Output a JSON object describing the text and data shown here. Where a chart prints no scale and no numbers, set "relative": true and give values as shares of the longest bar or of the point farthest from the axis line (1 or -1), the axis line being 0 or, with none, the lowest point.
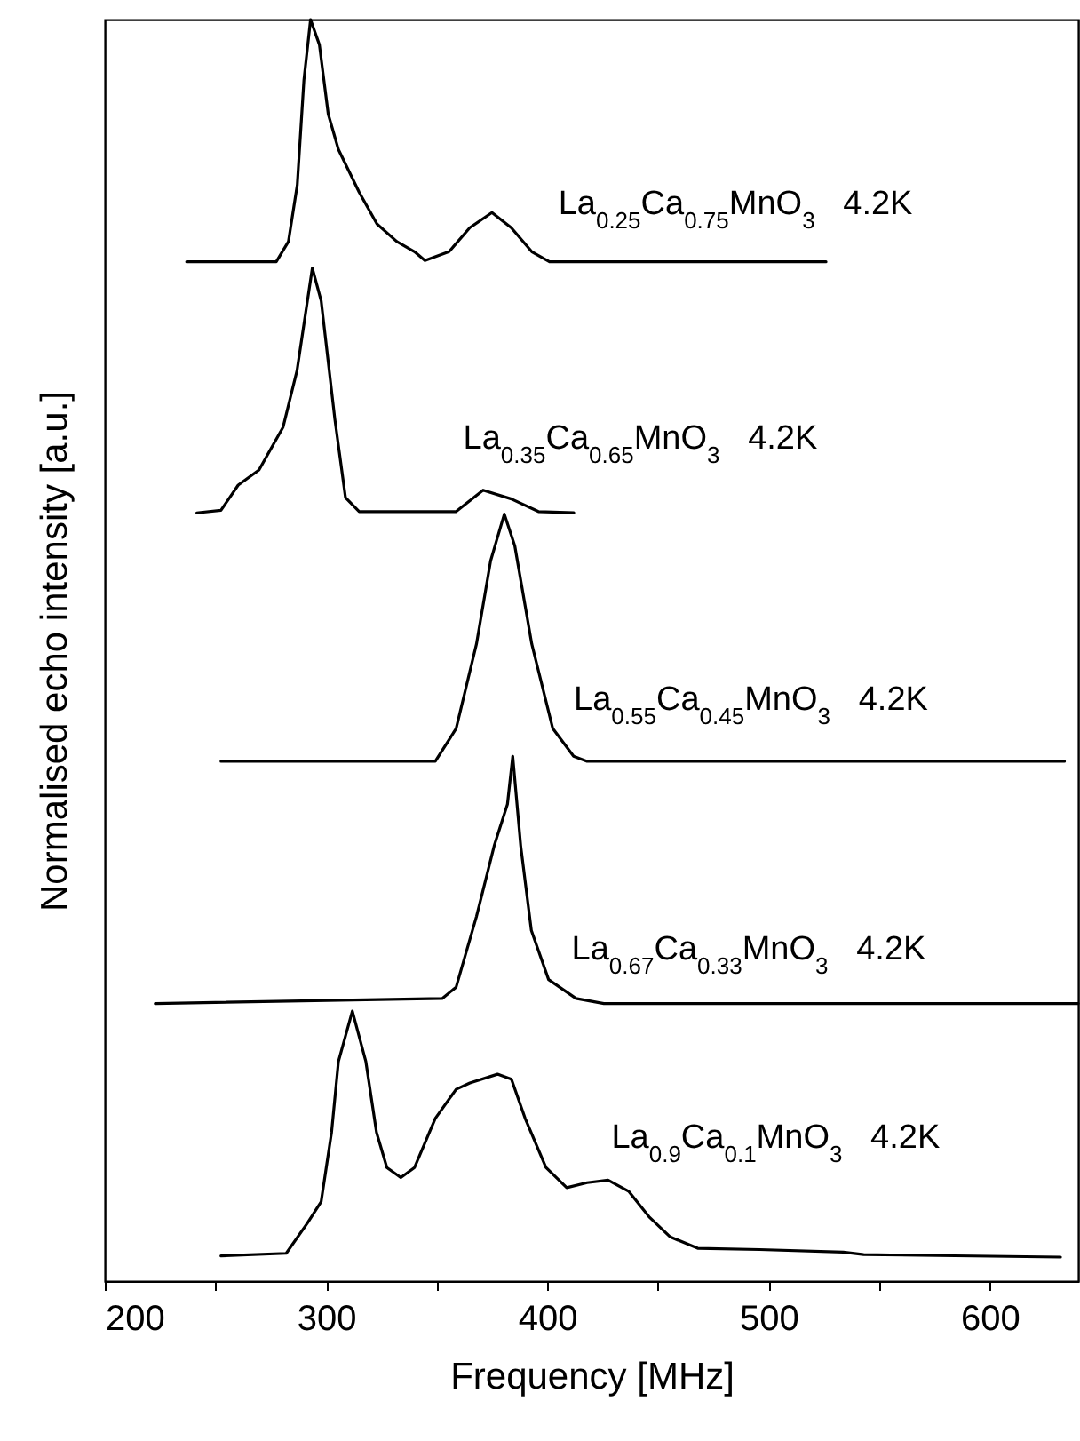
{
  "chart_data": {
    "type": "line",
    "relative": true,
    "xlabel": "Frequency [MHz]",
    "ylabel": "Normalised echo intensity [a.u.]",
    "xlim": [
      200,
      640
    ],
    "xticks": [
      200,
      {
        "value": 250,
        "label": null
      },
      300,
      {
        "value": 350,
        "label": null
      },
      400,
      {
        "value": 450,
        "label": null
      },
      500,
      {
        "value": 550,
        "label": null
      },
      600
    ],
    "series": [
      {
        "name": "La$_{0.25}$Ca$_{0.75}$MnO$_{3}$   4.2K",
        "color": "#000000",
        "x": [
          237,
          277.5,
          283,
          287,
          290,
          293,
          297,
          301,
          305.6,
          315,
          323,
          332,
          340,
          344.7,
          355.6,
          365,
          375,
          383.7,
          393,
          401,
          526
        ],
        "values": [
          0.808,
          0.808,
          0.824,
          0.869,
          0.952,
          1.0,
          0.98,
          0.925,
          0.897,
          0.863,
          0.838,
          0.824,
          0.816,
          0.809,
          0.816,
          0.835,
          0.847,
          0.835,
          0.816,
          0.808,
          0.808
        ]
      },
      {
        "name": "La$_{0.35}$Ca$_{0.65}$MnO$_{3}$   4.2K",
        "color": "#000000",
        "x": [
          241.6,
          252.5,
          260.3,
          269.7,
          280.6,
          286.9,
          293.8,
          297.8,
          304,
          308.8,
          315,
          358.8,
          371,
          383.8,
          396,
          412
        ],
        "values": [
          0.609,
          0.611,
          0.631,
          0.643,
          0.677,
          0.722,
          0.803,
          0.777,
          0.683,
          0.621,
          0.61,
          0.61,
          0.627,
          0.62,
          0.61,
          0.609
        ]
      },
      {
        "name": "La$_{0.55}$Ca$_{0.45}$MnO$_{3}$   4.2K",
        "color": "#000000",
        "x": [
          252.5,
          349.4,
          358.8,
          368,
          374.4,
          380.6,
          385.3,
          393,
          402.5,
          411.9,
          418,
          633.8
        ],
        "values": [
          0.412,
          0.412,
          0.438,
          0.505,
          0.571,
          0.608,
          0.583,
          0.505,
          0.438,
          0.416,
          0.412,
          0.412
        ]
      },
      {
        "name": "La$_{0.67}$Ca$_{0.33}$MnO$_{3}$   4.2K",
        "color": "#000000",
        "x": [
          222.8,
          352.5,
          358.8,
          368,
          376,
          382,
          384.4,
          388,
          392.8,
          400.6,
          413,
          425.6,
          640
        ],
        "values": [
          0.22,
          0.224,
          0.233,
          0.289,
          0.345,
          0.378,
          0.416,
          0.345,
          0.278,
          0.239,
          0.224,
          0.22,
          0.22
        ]
      },
      {
        "name": "La$_{0.9}$Ca$_{0.1}$MnO$_{3}$   4.2K",
        "color": "#000000",
        "x": [
          252.5,
          282,
          291.6,
          297.8,
          302.5,
          305.6,
          311.9,
          318,
          322.8,
          327.5,
          333.8,
          340,
          349.4,
          358.8,
          365,
          377.5,
          383.8,
          390,
          399.4,
          408.8,
          418,
          427.5,
          436.9,
          446,
          455.6,
          468,
          496,
          533.8,
          543,
          632
        ],
        "values": [
          0.02,
          0.022,
          0.046,
          0.063,
          0.118,
          0.174,
          0.214,
          0.174,
          0.118,
          0.09,
          0.082,
          0.09,
          0.129,
          0.152,
          0.157,
          0.164,
          0.16,
          0.129,
          0.09,
          0.074,
          0.078,
          0.08,
          0.071,
          0.051,
          0.035,
          0.026,
          0.025,
          0.023,
          0.021,
          0.019
        ]
      }
    ]
  }
}
